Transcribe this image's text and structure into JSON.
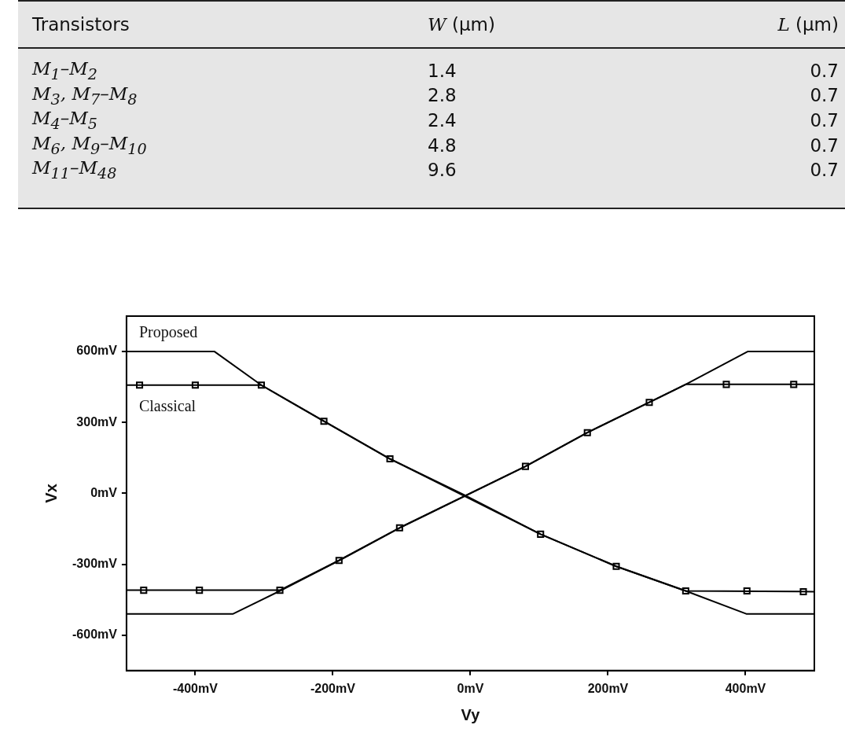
{
  "chart_data": [
    {
      "type": "other",
      "annotations": [
        "Transistors",
        "W (µm)",
        "L (µm)",
        "M$_{1}$–M$_{2}$",
        "1.4",
        "0.7",
        "M$_{3}$, M$_{7}$–M$_{8}$",
        "2.8",
        "0.7",
        "M$_{4}$–M$_{5}$",
        "2.4",
        "0.7",
        "M$_{6}$, M$_{9}$–M$_{10}$",
        "4.8",
        "0.7",
        "M$_{11}$–M$_{48}$",
        "9.6",
        "0.7"
      ]
    },
    {
      "type": "line",
      "xlabel": "Vy",
      "ylabel": "Vx",
      "xlim": [
        -500,
        500
      ],
      "ylim": [
        -750,
        750
      ],
      "xticks": [
        {
          "value": -400,
          "label": "-400mV"
        },
        {
          "value": -200,
          "label": "-200mV"
        },
        {
          "value": 0,
          "label": "0mV"
        },
        {
          "value": 200,
          "label": "200mV"
        },
        {
          "value": 400,
          "label": "400mV"
        }
      ],
      "yticks": [
        {
          "value": 600,
          "label": "600mV"
        },
        {
          "value": 300,
          "label": "300mV"
        },
        {
          "value": 0,
          "label": "0mV"
        },
        {
          "value": -300,
          "label": "-300mV"
        },
        {
          "value": -600,
          "label": "-600mV"
        }
      ],
      "grid": false,
      "legend": false,
      "annotations": [
        "Proposed",
        "Classical"
      ],
      "series": [
        {
          "type": "line",
          "color": "#000000",
          "marker": "none",
          "x": [
            -500,
            -372,
            -304,
            -213,
            -117,
            -9,
            102,
            212,
            313,
            401,
            500
          ],
          "values": [
            600,
            600,
            458,
            305,
            146,
            -7,
            -173,
            -309,
            -413,
            -510,
            -510
          ]
        },
        {
          "type": "line",
          "color": "#000000",
          "marker": "none",
          "x": [
            -500,
            -345,
            -277,
            -191,
            -103,
            80,
            170,
            260,
            313,
            403,
            500
          ],
          "values": [
            -510,
            -510,
            -413,
            -284,
            -146,
            114,
            257,
            385,
            461,
            600,
            600
          ]
        },
        {
          "type": "line",
          "color": "#000000",
          "marker": "none",
          "x": [
            -500,
            -304,
            -213,
            -117,
            102,
            212,
            313,
            500
          ],
          "values": [
            458,
            458,
            305,
            146,
            -173,
            -309,
            -413,
            -416
          ]
        },
        {
          "type": "line",
          "color": "#000000",
          "marker": "none",
          "x": [
            -500,
            -277,
            -191,
            -103,
            80,
            170,
            260,
            313,
            500
          ],
          "values": [
            -410,
            -410,
            -284,
            -146,
            114,
            257,
            385,
            461,
            461
          ]
        },
        {
          "type": "scatter",
          "color": "#000000",
          "marker": "square",
          "x": [
            -481,
            -400,
            -304,
            -213,
            -117,
            102,
            212,
            313,
            402,
            484
          ],
          "values": [
            458,
            458,
            458,
            305,
            146,
            -173,
            -309,
            -413,
            -413,
            -416
          ]
        },
        {
          "type": "scatter",
          "color": "#000000",
          "marker": "square",
          "x": [
            -475,
            -394,
            -277,
            -191,
            -103,
            80,
            170,
            260,
            372,
            470
          ],
          "values": [
            -410,
            -410,
            -410,
            -284,
            -146,
            114,
            257,
            385,
            461,
            461
          ]
        }
      ]
    }
  ]
}
